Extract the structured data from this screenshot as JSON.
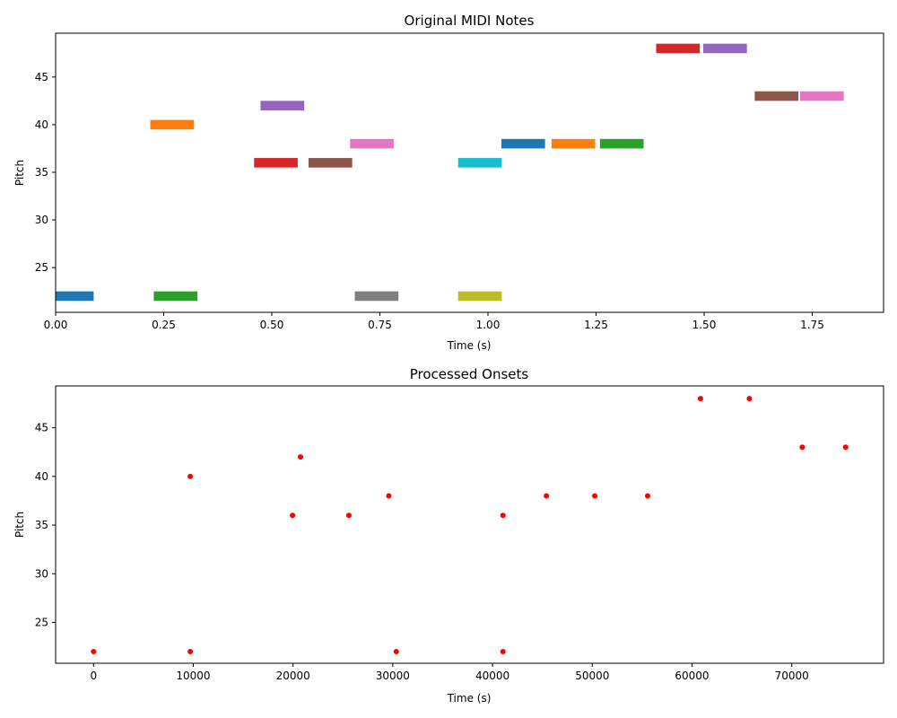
{
  "chart_data": [
    {
      "type": "broken_barh",
      "title": "Original MIDI Notes",
      "xlabel": "Time (s)",
      "ylabel": "Pitch",
      "xlim": [
        0,
        1.915
      ],
      "ylim": [
        20.3,
        49.6
      ],
      "xticks": [
        0,
        0.25,
        0.5,
        0.75,
        1.0,
        1.25,
        1.5,
        1.75
      ],
      "xtick_labels": [
        "0.00",
        "0.25",
        "0.50",
        "0.75",
        "1.00",
        "1.25",
        "1.50",
        "1.75"
      ],
      "yticks": [
        25,
        30,
        35,
        40,
        45
      ],
      "ytick_labels": [
        "25",
        "30",
        "35",
        "40",
        "45"
      ],
      "grid": false,
      "notes": [
        {
          "start": 0.0,
          "end": 0.088,
          "pitch": 22,
          "color": "#1f77b4"
        },
        {
          "start": 0.219,
          "end": 0.32,
          "pitch": 40,
          "color": "#ff7f0e"
        },
        {
          "start": 0.227,
          "end": 0.328,
          "pitch": 22,
          "color": "#2ca02c"
        },
        {
          "start": 0.459,
          "end": 0.56,
          "pitch": 36,
          "color": "#d62728"
        },
        {
          "start": 0.474,
          "end": 0.575,
          "pitch": 42,
          "color": "#9467bd"
        },
        {
          "start": 0.585,
          "end": 0.686,
          "pitch": 36,
          "color": "#8c564b"
        },
        {
          "start": 0.681,
          "end": 0.782,
          "pitch": 38,
          "color": "#e377c2"
        },
        {
          "start": 0.692,
          "end": 0.793,
          "pitch": 22,
          "color": "#7f7f7f"
        },
        {
          "start": 0.931,
          "end": 1.032,
          "pitch": 22,
          "color": "#bcbd22"
        },
        {
          "start": 0.931,
          "end": 1.032,
          "pitch": 36,
          "color": "#17becf"
        },
        {
          "start": 1.031,
          "end": 1.132,
          "pitch": 38,
          "color": "#1f77b4"
        },
        {
          "start": 1.147,
          "end": 1.248,
          "pitch": 38,
          "color": "#ff7f0e"
        },
        {
          "start": 1.259,
          "end": 1.36,
          "pitch": 38,
          "color": "#2ca02c"
        },
        {
          "start": 1.389,
          "end": 1.49,
          "pitch": 48,
          "color": "#d62728"
        },
        {
          "start": 1.498,
          "end": 1.599,
          "pitch": 48,
          "color": "#9467bd"
        },
        {
          "start": 1.617,
          "end": 1.718,
          "pitch": 43,
          "color": "#8c564b"
        },
        {
          "start": 1.722,
          "end": 1.823,
          "pitch": 43,
          "color": "#e377c2"
        }
      ]
    },
    {
      "type": "scatter",
      "title": "Processed Onsets",
      "xlabel": "Time (s)",
      "ylabel": "Pitch",
      "xlim": [
        -3800,
        79200
      ],
      "ylim": [
        20.8,
        49.3
      ],
      "xticks": [
        0,
        10000,
        20000,
        30000,
        40000,
        50000,
        60000,
        70000
      ],
      "xtick_labels": [
        "0",
        "10000",
        "20000",
        "30000",
        "40000",
        "50000",
        "60000",
        "70000"
      ],
      "yticks": [
        25,
        30,
        35,
        40,
        45
      ],
      "ytick_labels": [
        "25",
        "30",
        "35",
        "40",
        "45"
      ],
      "grid": false,
      "point_color": "#ff0000",
      "points": [
        {
          "x": 0,
          "y": 22
        },
        {
          "x": 9700,
          "y": 22
        },
        {
          "x": 9700,
          "y": 40
        },
        {
          "x": 19950,
          "y": 36
        },
        {
          "x": 20750,
          "y": 42
        },
        {
          "x": 25600,
          "y": 36
        },
        {
          "x": 29600,
          "y": 38
        },
        {
          "x": 30350,
          "y": 22
        },
        {
          "x": 41050,
          "y": 22
        },
        {
          "x": 41050,
          "y": 36
        },
        {
          "x": 45400,
          "y": 38
        },
        {
          "x": 50250,
          "y": 38
        },
        {
          "x": 55550,
          "y": 38
        },
        {
          "x": 60850,
          "y": 48
        },
        {
          "x": 65750,
          "y": 48
        },
        {
          "x": 71050,
          "y": 43
        },
        {
          "x": 75400,
          "y": 43
        }
      ]
    }
  ]
}
